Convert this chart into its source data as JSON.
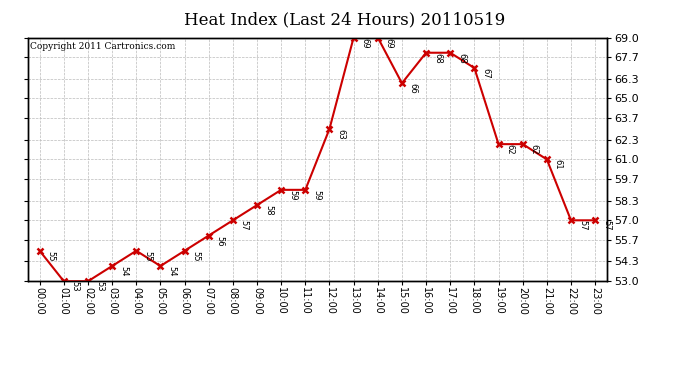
{
  "title": "Heat Index (Last 24 Hours) 20110519",
  "copyright": "Copyright 2011 Cartronics.com",
  "hours": [
    "00:00",
    "01:00",
    "02:00",
    "03:00",
    "04:00",
    "05:00",
    "06:00",
    "07:00",
    "08:00",
    "09:00",
    "10:00",
    "11:00",
    "12:00",
    "13:00",
    "14:00",
    "15:00",
    "16:00",
    "17:00",
    "18:00",
    "19:00",
    "20:00",
    "21:00",
    "22:00",
    "23:00"
  ],
  "values": [
    55,
    53,
    53,
    54,
    55,
    54,
    55,
    56,
    57,
    58,
    59,
    59,
    63,
    69,
    69,
    66,
    68,
    68,
    67,
    62,
    62,
    61,
    57,
    57
  ],
  "ylim_min": 53.0,
  "ylim_max": 69.0,
  "yticks": [
    53.0,
    54.3,
    55.7,
    57.0,
    58.3,
    59.7,
    61.0,
    62.3,
    63.7,
    65.0,
    66.3,
    67.7,
    69.0
  ],
  "line_color": "#cc0000",
  "marker_color": "#cc0000",
  "background_color": "#ffffff",
  "grid_color": "#bbbbbb",
  "title_fontsize": 12,
  "copyright_fontsize": 6.5,
  "label_fontsize": 6,
  "tick_fontsize": 8,
  "xtick_fontsize": 7
}
